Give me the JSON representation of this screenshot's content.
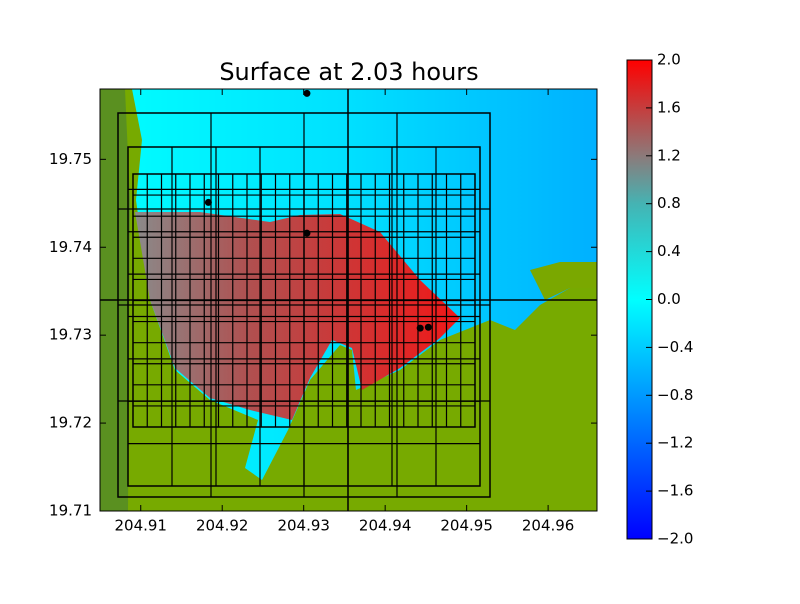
{
  "chart_data": {
    "type": "heatmap",
    "title": "Surface at 2.03 hours",
    "xlim": [
      204.905,
      204.966
    ],
    "xticks": [
      204.91,
      204.92,
      204.93,
      204.94,
      204.95,
      204.96
    ],
    "ylim": [
      19.71,
      19.758
    ],
    "yticks": [
      19.71,
      19.72,
      19.73,
      19.74,
      19.75
    ],
    "points": {
      "color": "#000000",
      "x": [
        204.9304,
        204.9183,
        204.9304,
        204.9443,
        204.9453
      ],
      "y": [
        19.7575,
        19.7451,
        19.7416,
        19.7308,
        19.7309
      ]
    },
    "colorbar": {
      "lim": [
        -2,
        2
      ],
      "ticks": [
        {
          "value": -2,
          "label": "−2.0"
        },
        {
          "value": -1.6,
          "label": "−1.6"
        },
        {
          "value": -1.2,
          "label": "−1.2"
        },
        {
          "value": -0.8,
          "label": "−0.8"
        },
        {
          "value": -0.4,
          "label": "−0.4"
        },
        {
          "value": 0,
          "label": "0.0"
        },
        {
          "value": 0.4,
          "label": "0.4"
        },
        {
          "value": 0.8,
          "label": "0.8"
        },
        {
          "value": 1.2,
          "label": "1.2"
        },
        {
          "value": 1.6,
          "label": "1.6"
        },
        {
          "value": 2,
          "label": "2.0"
        }
      ]
    }
  }
}
